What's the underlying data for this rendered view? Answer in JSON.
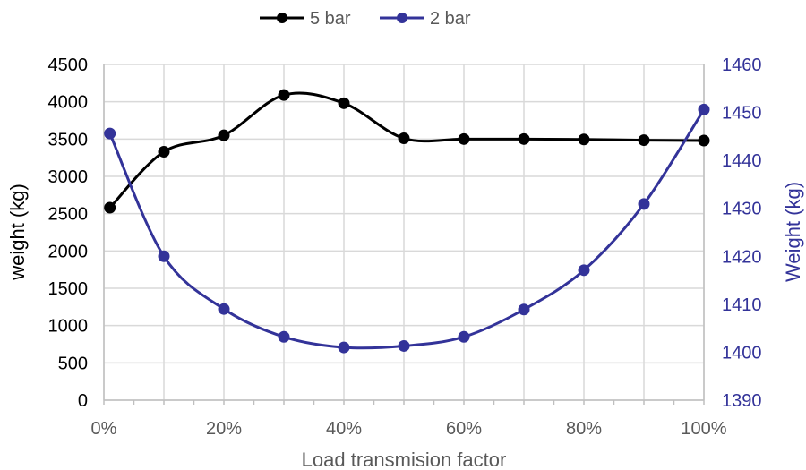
{
  "chart_data": {
    "type": "line",
    "x": [
      0.01,
      0.1,
      0.2,
      0.3,
      0.4,
      0.5,
      0.6,
      0.7,
      0.8,
      0.9,
      1.0
    ],
    "xlabel": "Load transmision factor",
    "xlim": [
      0,
      1
    ],
    "xticks": [
      "0%",
      "10%",
      "20%",
      "30%",
      "40%",
      "50%",
      "60%",
      "70%",
      "80%",
      "90%",
      "100%"
    ],
    "ylabel": "weight (kg)",
    "ylim": [
      0,
      4500
    ],
    "yticks": [
      "0",
      "500",
      "1000",
      "1500",
      "2000",
      "2500",
      "3000",
      "3500",
      "4000",
      "4500"
    ],
    "y2label": "Weight (kg)",
    "y2lim": [
      1390,
      1460
    ],
    "y2ticks": [
      "1390",
      "1400",
      "1410",
      "1420",
      "1430",
      "1440",
      "1450",
      "1460"
    ],
    "grid": true,
    "legend": "top",
    "series": [
      {
        "name": "5 bar",
        "axis": "left",
        "color": "#000000",
        "values": [
          2580,
          3330,
          3550,
          4090,
          3980,
          3510,
          3500,
          3500,
          3495,
          3485,
          3480
        ]
      },
      {
        "name": "2 bar",
        "axis": "right",
        "color": "#333399",
        "values": [
          1445.6,
          1420.0,
          1409.0,
          1403.2,
          1401.0,
          1401.3,
          1403.2,
          1408.9,
          1417.1,
          1430.9,
          1450.6
        ]
      }
    ]
  }
}
